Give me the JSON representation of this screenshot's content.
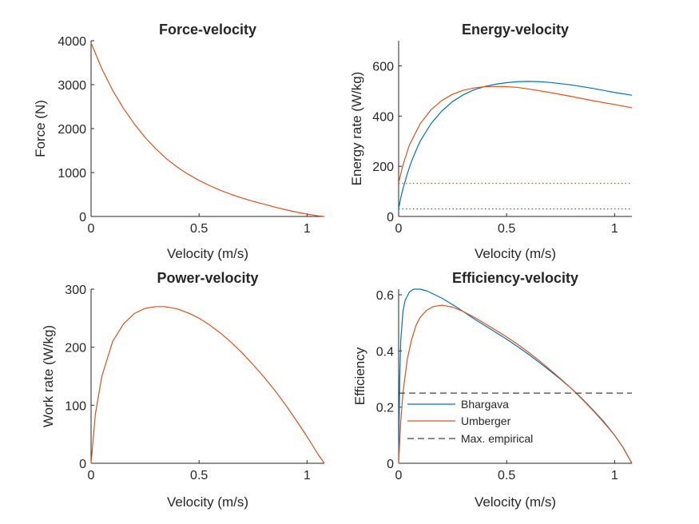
{
  "colors": {
    "bhargava": "#0072BD",
    "umberger": "#D95319",
    "empirical": "#404040",
    "axis": "#262626"
  },
  "chart_data": [
    {
      "id": "force",
      "type": "line",
      "title": "Force-velocity",
      "xlabel": "Velocity (m/s)",
      "ylabel": "Force (N)",
      "xlim": [
        0,
        1.08
      ],
      "ylim": [
        0,
        4000
      ],
      "xticks": [
        0,
        0.5,
        1
      ],
      "xtick_labels": [
        "0",
        "0.5",
        "1"
      ],
      "yticks": [
        0,
        1000,
        2000,
        3000,
        4000
      ],
      "ytick_labels": [
        "0",
        "1000",
        "2000",
        "3000",
        "4000"
      ],
      "series": [
        {
          "color": "umberger",
          "x": [
            0,
            0.05,
            0.1,
            0.15,
            0.2,
            0.25,
            0.3,
            0.35,
            0.4,
            0.45,
            0.5,
            0.55,
            0.6,
            0.65,
            0.7,
            0.75,
            0.8,
            0.85,
            0.9,
            0.95,
            1.0,
            1.05,
            1.08
          ],
          "y": [
            3950,
            3360,
            2870,
            2460,
            2110,
            1800,
            1540,
            1310,
            1120,
            960,
            820,
            700,
            595,
            500,
            420,
            345,
            280,
            215,
            155,
            100,
            55,
            15,
            0
          ]
        }
      ]
    },
    {
      "id": "energy",
      "type": "line",
      "title": "Energy-velocity",
      "xlabel": "Velocity (m/s)",
      "ylabel": "Energy rate (W/kg)",
      "xlim": [
        0,
        1.08
      ],
      "ylim": [
        0,
        700
      ],
      "xticks": [
        0,
        0.5,
        1
      ],
      "xtick_labels": [
        "0",
        "0.5",
        "1"
      ],
      "yticks": [
        0,
        200,
        400,
        600
      ],
      "ytick_labels": [
        "0",
        "200",
        "400",
        "600"
      ],
      "series": [
        {
          "color": "bhargava",
          "x": [
            0,
            0.01,
            0.02,
            0.04,
            0.06,
            0.08,
            0.1,
            0.15,
            0.2,
            0.25,
            0.3,
            0.35,
            0.4,
            0.45,
            0.5,
            0.55,
            0.6,
            0.65,
            0.7,
            0.8,
            0.9,
            1.0,
            1.08
          ],
          "y": [
            30,
            75,
            110,
            170,
            220,
            262,
            300,
            370,
            420,
            458,
            485,
            505,
            518,
            527,
            533,
            537,
            538,
            537,
            534,
            524,
            510,
            494,
            483
          ]
        },
        {
          "color": "umberger",
          "x": [
            0,
            0.02,
            0.05,
            0.1,
            0.15,
            0.2,
            0.25,
            0.3,
            0.35,
            0.4,
            0.45,
            0.5,
            0.55,
            0.6,
            0.7,
            0.8,
            0.9,
            1.0,
            1.08
          ],
          "y": [
            135,
            205,
            285,
            370,
            425,
            462,
            487,
            503,
            512,
            517,
            518,
            517,
            514,
            508,
            494,
            478,
            461,
            446,
            433
          ]
        },
        {
          "color": "umberger",
          "dash": "dotted",
          "x": [
            0,
            1.08
          ],
          "y": [
            132,
            132
          ]
        },
        {
          "color": "bhargava",
          "dash": "dotted",
          "x": [
            0,
            1.08
          ],
          "y": [
            30,
            30
          ]
        }
      ]
    },
    {
      "id": "power",
      "type": "line",
      "title": "Power-velocity",
      "xlabel": "Velocity (m/s)",
      "ylabel": "Work rate (W/kg)",
      "xlim": [
        0,
        1.08
      ],
      "ylim": [
        0,
        300
      ],
      "xticks": [
        0,
        0.5,
        1
      ],
      "xtick_labels": [
        "0",
        "0.5",
        "1"
      ],
      "yticks": [
        0,
        100,
        200,
        300
      ],
      "ytick_labels": [
        "0",
        "100",
        "200",
        "300"
      ],
      "series": [
        {
          "color": "umberger",
          "x": [
            0,
            0.02,
            0.05,
            0.1,
            0.15,
            0.2,
            0.25,
            0.3,
            0.34,
            0.4,
            0.45,
            0.5,
            0.55,
            0.6,
            0.65,
            0.7,
            0.75,
            0.8,
            0.85,
            0.9,
            0.95,
            1.0,
            1.05,
            1.08
          ],
          "y": [
            0,
            85,
            150,
            210,
            240,
            258,
            267,
            270,
            270,
            266,
            259,
            250,
            238,
            224,
            208,
            190,
            170,
            149,
            126,
            101,
            74,
            46,
            16,
            0
          ]
        }
      ]
    },
    {
      "id": "efficiency",
      "type": "line",
      "title": "Efficiency-velocity",
      "xlabel": "Velocity (m/s)",
      "ylabel": "Efficiency",
      "xlim": [
        0,
        1.08
      ],
      "ylim": [
        0,
        0.62
      ],
      "xticks": [
        0,
        0.5,
        1
      ],
      "xtick_labels": [
        "0",
        "0.5",
        "1"
      ],
      "yticks": [
        0,
        0.2,
        0.4,
        0.6
      ],
      "ytick_labels": [
        "0",
        "0.2",
        "0.4",
        "0.6"
      ],
      "legend": {
        "placement": "lower-left",
        "entries": [
          {
            "label": "Bhargava",
            "color": "bhargava",
            "dash": "solid"
          },
          {
            "label": "Umberger",
            "color": "umberger",
            "dash": "solid"
          },
          {
            "label": "Max. empirical",
            "color": "empirical",
            "dash": "dashed"
          }
        ]
      },
      "series": [
        {
          "name": "Bhargava",
          "color": "bhargava",
          "x": [
            0,
            0.005,
            0.01,
            0.02,
            0.03,
            0.05,
            0.07,
            0.1,
            0.13,
            0.16,
            0.2,
            0.25,
            0.3,
            0.35,
            0.4,
            0.45,
            0.5,
            0.55,
            0.6,
            0.65,
            0.7,
            0.75,
            0.8,
            0.85,
            0.9,
            0.95,
            1.0,
            1.04,
            1.08
          ],
          "y": [
            0,
            0.3,
            0.44,
            0.54,
            0.58,
            0.61,
            0.62,
            0.62,
            0.614,
            0.603,
            0.588,
            0.565,
            0.54,
            0.514,
            0.49,
            0.466,
            0.442,
            0.416,
            0.389,
            0.36,
            0.33,
            0.299,
            0.266,
            0.23,
            0.19,
            0.148,
            0.1,
            0.055,
            0
          ]
        },
        {
          "name": "Umberger",
          "color": "umberger",
          "x": [
            0,
            0.01,
            0.02,
            0.04,
            0.06,
            0.08,
            0.1,
            0.13,
            0.16,
            0.2,
            0.25,
            0.3,
            0.35,
            0.4,
            0.45,
            0.5,
            0.55,
            0.6,
            0.65,
            0.7,
            0.75,
            0.8,
            0.85,
            0.9,
            0.95,
            1.0,
            1.04,
            1.08
          ],
          "y": [
            0,
            0.15,
            0.25,
            0.37,
            0.44,
            0.49,
            0.52,
            0.545,
            0.558,
            0.563,
            0.556,
            0.54,
            0.52,
            0.497,
            0.474,
            0.45,
            0.424,
            0.396,
            0.366,
            0.334,
            0.301,
            0.266,
            0.228,
            0.188,
            0.145,
            0.1,
            0.055,
            0
          ]
        },
        {
          "name": "Max. empirical",
          "color": "empirical",
          "dash": "dashed",
          "x": [
            0,
            1.08
          ],
          "y": [
            0.25,
            0.25
          ]
        }
      ]
    }
  ]
}
